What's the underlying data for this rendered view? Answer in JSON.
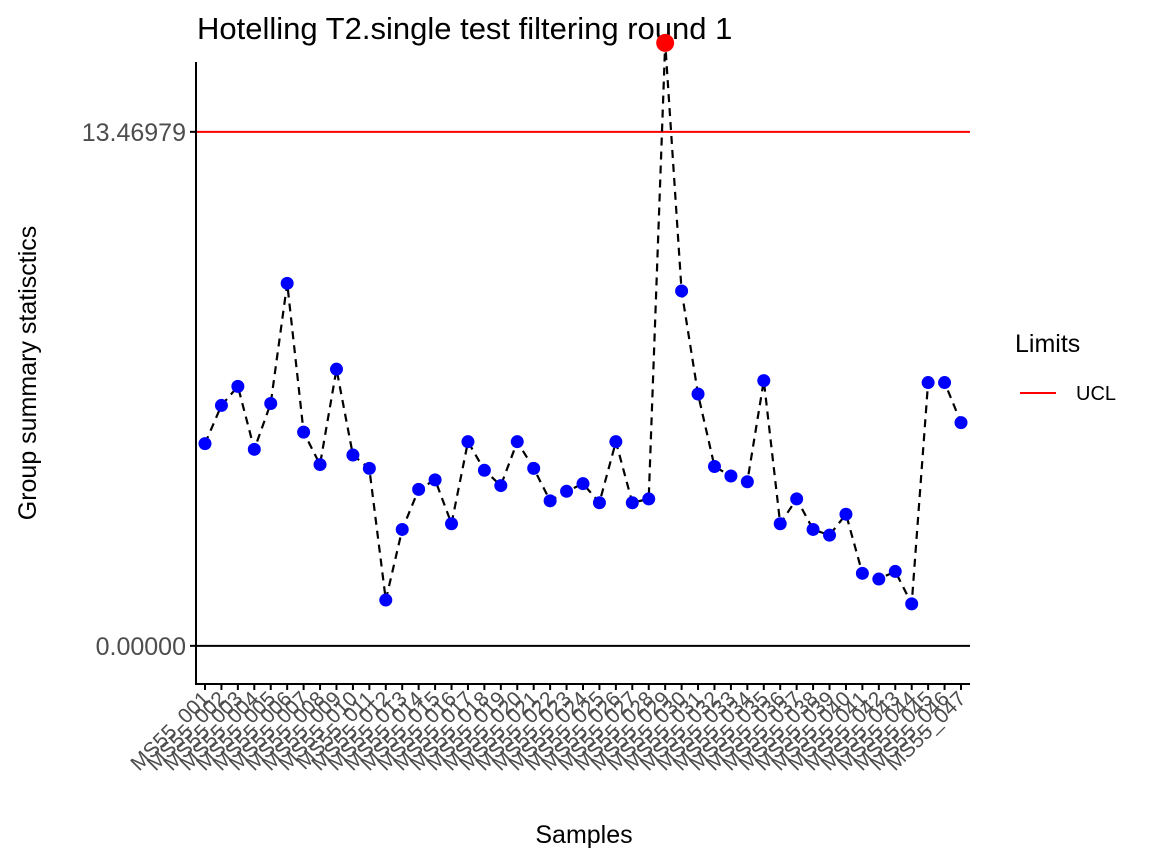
{
  "chart_data": {
    "type": "line",
    "title": "Hotelling T2.single test filtering round 1",
    "xlabel": "Samples",
    "ylabel": "Group summary statisctics",
    "ylim": [
      -1.0,
      15.3
    ],
    "yticks": [
      0.0,
      13.46979
    ],
    "ytick_labels": [
      "0.00000",
      "13.46979"
    ],
    "grid": false,
    "categories": [
      "MS55_001",
      "MS55_002",
      "MS55_003",
      "MS55_004",
      "MS55_005",
      "MS55_006",
      "MS55_007",
      "MS55_008",
      "MS55_009",
      "MS55_010",
      "MS55_011",
      "MS55_012",
      "MS55_013",
      "MS55_014",
      "MS55_015",
      "MS55_016",
      "MS55_017",
      "MS55_018",
      "MS55_019",
      "MS55_020",
      "MS55_021",
      "MS55_022",
      "MS55_023",
      "MS55_024",
      "MS55_025",
      "MS55_026",
      "MS55_027",
      "MS55_028",
      "MS55_029",
      "MS55_030",
      "MS55_031",
      "MS55_032",
      "MS55_033",
      "MS55_034",
      "MS55_035",
      "MS55_036",
      "MS55_037",
      "MS55_038",
      "MS55_039",
      "MS55_040",
      "MS55_041",
      "MS55_042",
      "MS55_043",
      "MS55_044",
      "MS55_045",
      "MS55_046",
      "MS55_047"
    ],
    "series": [
      {
        "values": [
          5.3,
          6.3,
          6.8,
          5.15,
          6.35,
          9.5,
          5.6,
          4.75,
          7.25,
          5.0,
          4.65,
          1.2,
          3.05,
          4.1,
          4.35,
          3.2,
          5.35,
          4.6,
          4.2,
          5.35,
          4.65,
          3.8,
          4.05,
          4.25,
          3.75,
          5.35,
          3.75,
          3.85,
          15.8,
          9.3,
          6.6,
          4.7,
          4.45,
          4.3,
          6.95,
          3.2,
          3.85,
          3.05,
          2.9,
          3.45,
          1.9,
          1.75,
          1.95,
          1.1,
          6.9,
          6.9,
          5.85
        ],
        "point_color": "#0000ff",
        "line_color": "#000000",
        "line_style": "dashed",
        "highlight_color": "#ff0000",
        "highlight_rule": "above UCL"
      }
    ],
    "reference_lines": [
      {
        "name": "UCL",
        "value": 13.46979,
        "color": "#ff0000"
      },
      {
        "name": "",
        "value": 0.0,
        "color": "#000000"
      }
    ],
    "legend": {
      "title": "Limits",
      "position": "right",
      "items": [
        {
          "label": "UCL",
          "color": "#ff0000"
        }
      ]
    }
  }
}
